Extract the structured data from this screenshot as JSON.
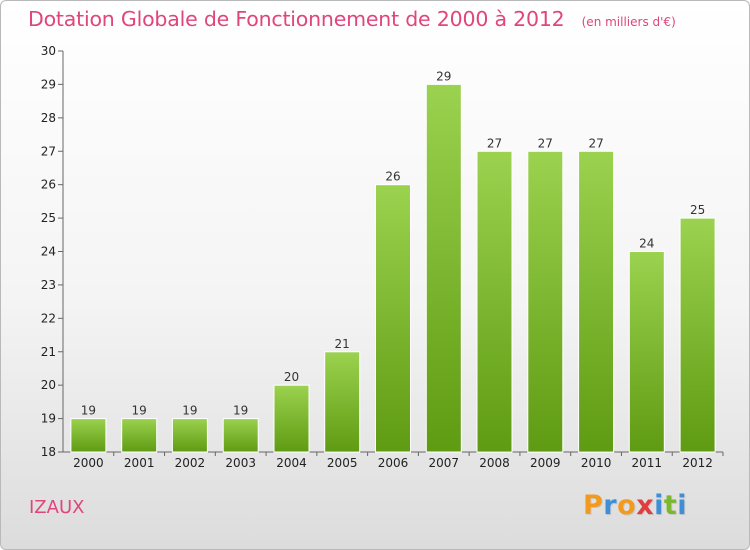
{
  "title": "Dotation Globale de Fonctionnement de 2000 à 2012",
  "subtitle": "(en milliers d'€)",
  "place": "IZAUX",
  "logo": {
    "letters": [
      "P",
      "r",
      "o",
      "x",
      "i",
      "t",
      "i"
    ],
    "colors": [
      "#f29a1e",
      "#3e8fd6",
      "#f29a1e",
      "#e23d3d",
      "#3e8fd6",
      "#7cb82f",
      "#3e8fd6"
    ]
  },
  "colors": {
    "title": "#e0457b",
    "bar_top": "#9bd24f",
    "bar_bottom": "#5f9b12"
  },
  "chart_data": {
    "type": "bar",
    "title": "Dotation Globale de Fonctionnement de 2000 à 2012",
    "subtitle": "(en milliers d'€)",
    "categories": [
      "2000",
      "2001",
      "2002",
      "2003",
      "2004",
      "2005",
      "2006",
      "2007",
      "2008",
      "2009",
      "2010",
      "2011",
      "2012"
    ],
    "values": [
      19,
      19,
      19,
      19,
      20,
      21,
      26,
      29,
      27,
      27,
      27,
      24,
      25
    ],
    "ylim": [
      18,
      30
    ],
    "yticks": [
      18,
      19,
      20,
      21,
      22,
      23,
      24,
      25,
      26,
      27,
      28,
      29,
      30
    ],
    "grid": false,
    "data_labels": true
  }
}
